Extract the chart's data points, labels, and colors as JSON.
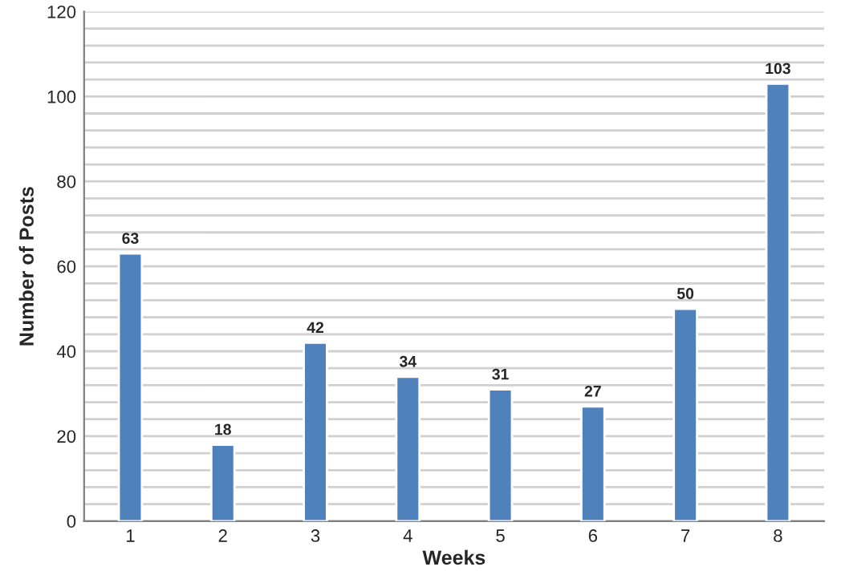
{
  "chart_data": {
    "type": "bar",
    "xlabel": "Weeks",
    "ylabel": "Number of Posts",
    "categories": [
      "1",
      "2",
      "3",
      "4",
      "5",
      "6",
      "7",
      "8"
    ],
    "values": [
      63,
      18,
      42,
      34,
      31,
      27,
      50,
      103
    ],
    "color": "#4f81bd",
    "ylim": [
      0,
      120
    ],
    "yticks": [
      0,
      {
        "value": 4,
        "label": null
      },
      {
        "value": 8,
        "label": null
      },
      {
        "value": 12,
        "label": null
      },
      {
        "value": 16,
        "label": null
      },
      20,
      {
        "value": 24,
        "label": null
      },
      {
        "value": 28,
        "label": null
      },
      {
        "value": 32,
        "label": null
      },
      {
        "value": 36,
        "label": null
      },
      40,
      {
        "value": 44,
        "label": null
      },
      {
        "value": 48,
        "label": null
      },
      {
        "value": 52,
        "label": null
      },
      {
        "value": 56,
        "label": null
      },
      60,
      {
        "value": 64,
        "label": null
      },
      {
        "value": 68,
        "label": null
      },
      {
        "value": 72,
        "label": null
      },
      {
        "value": 76,
        "label": null
      },
      80,
      {
        "value": 84,
        "label": null
      },
      {
        "value": 88,
        "label": null
      },
      {
        "value": 92,
        "label": null
      },
      {
        "value": 96,
        "label": null
      },
      100,
      {
        "value": 104,
        "label": null
      },
      {
        "value": 108,
        "label": null
      },
      {
        "value": 112,
        "label": null
      },
      {
        "value": 116,
        "label": null
      },
      120
    ],
    "grid": "y",
    "data_labels": true
  }
}
